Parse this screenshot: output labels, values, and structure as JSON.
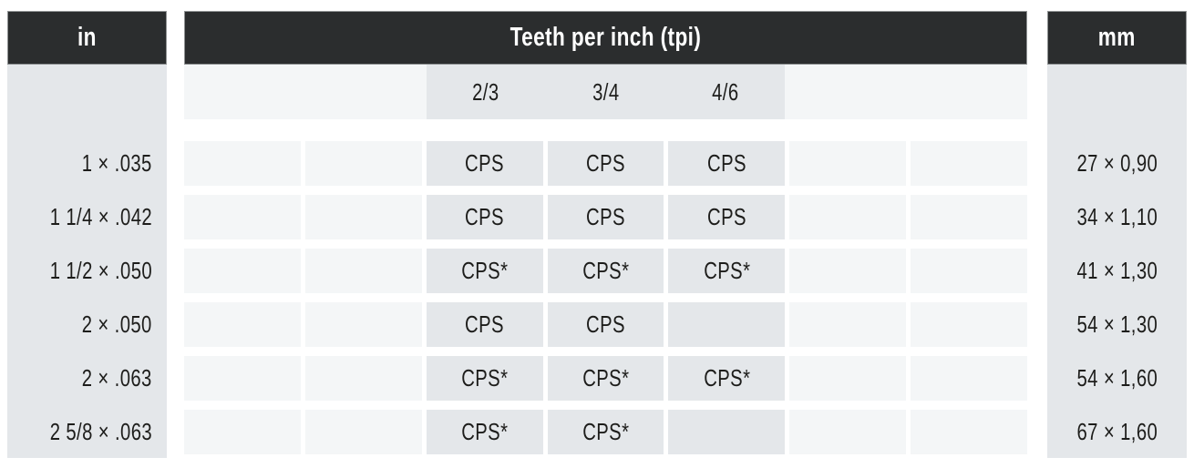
{
  "headers": {
    "left": "in",
    "center": "Teeth per inch (tpi)",
    "right": "mm"
  },
  "tpi_columns": [
    "2/3",
    "3/4",
    "4/6"
  ],
  "rows": [
    {
      "in": "1 × .035",
      "cells": [
        "CPS",
        "CPS",
        "CPS"
      ],
      "mm": "27 × 0,90"
    },
    {
      "in": "1 1/4 × .042",
      "cells": [
        "CPS",
        "CPS",
        "CPS"
      ],
      "mm": "34 × 1,10"
    },
    {
      "in": "1 1/2 × .050",
      "cells": [
        "CPS*",
        "CPS*",
        "CPS*"
      ],
      "mm": "41 × 1,30"
    },
    {
      "in": "2 × .050",
      "cells": [
        "CPS",
        "CPS",
        ""
      ],
      "mm": "54 × 1,30"
    },
    {
      "in": "2 × .063",
      "cells": [
        "CPS*",
        "CPS*",
        "CPS*"
      ],
      "mm": "54 × 1,60"
    },
    {
      "in": "2 5/8 × .063",
      "cells": [
        "CPS*",
        "CPS*",
        ""
      ],
      "mm": "67 × 1,60"
    }
  ],
  "colors": {
    "header_bg": "#2b2d2e",
    "header_text": "#ffffff",
    "column_bg": "#e4e7ea",
    "active_cell_bg": "#e4e7ea",
    "empty_cell_bg": "#f4f6f7",
    "body_text": "#1d1d1b",
    "page_bg": "#ffffff"
  }
}
